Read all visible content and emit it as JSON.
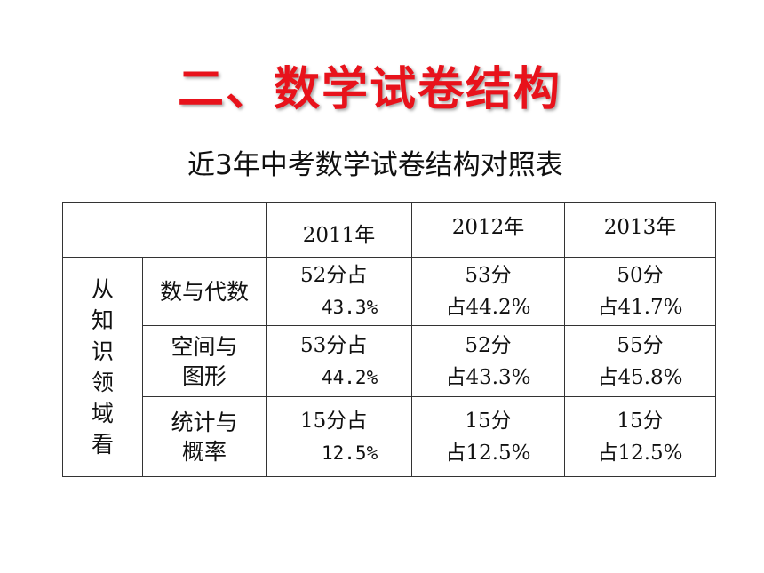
{
  "title": "二、数学试卷结构",
  "subtitle": "近3年中考数学试卷结构对照表",
  "table": {
    "years": [
      "2011年",
      "2012年",
      "2013年"
    ],
    "side_label": [
      "从",
      "知",
      "识",
      "领",
      "域",
      "看"
    ],
    "rows": [
      {
        "category": [
          "数与代数"
        ],
        "cells": [
          {
            "line1": "52分占",
            "line2": "43.3%"
          },
          {
            "line1": "53分",
            "line2": "占44.2%"
          },
          {
            "line1": "50分",
            "line2": "占41.7%"
          }
        ]
      },
      {
        "category": [
          "空间与",
          "图形"
        ],
        "cells": [
          {
            "line1": "53分占",
            "line2": "44.2%"
          },
          {
            "line1": "52分",
            "line2": "占43.3%"
          },
          {
            "line1": "55分",
            "line2": "占45.8%"
          }
        ]
      },
      {
        "category": [
          "统计与",
          "概率"
        ],
        "cells": [
          {
            "line1": "15分占",
            "line2": "12.5%"
          },
          {
            "line1": "15分",
            "line2": "占12.5%"
          },
          {
            "line1": "15分",
            "line2": "占12.5%"
          }
        ]
      }
    ]
  }
}
